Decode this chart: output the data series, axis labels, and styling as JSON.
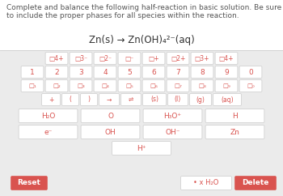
{
  "bg_color": "#ebebeb",
  "top_bg": "#ffffff",
  "title_text": "Complete and balance the following half-reaction in basic solution. Be sure\nto include the proper phases for all species within the reaction.",
  "equation": "Zn(s) → Zn(OH)₄²⁻(aq)",
  "title_fontsize": 6.5,
  "eq_fontsize": 8.5,
  "button_bg": "#ffffff",
  "button_border": "#cccccc",
  "red_text": "#d9534f",
  "red_bg": "#d9534f",
  "dark_text": "#444444",
  "superscript_row": [
    "□4+",
    "□3⁻",
    "□2⁻",
    "□⁻",
    "□+",
    "□2+",
    "□3+",
    "□4+"
  ],
  "number_row": [
    "1",
    "2",
    "3",
    "4",
    "5",
    "6",
    "7",
    "8",
    "9",
    "0"
  ],
  "subscript_row": [
    "□₁",
    "□₂",
    "□₃",
    "□₄",
    "□₅",
    "□₆",
    "□₇",
    "□₈",
    "□₉",
    "□₀"
  ],
  "symbol_row": [
    "+",
    "(",
    ")",
    "→",
    "⇌",
    "(s)",
    "(l)",
    "(g)",
    "(aq)"
  ],
  "chem_row1": [
    "H₂O",
    "O",
    "H₃O⁺",
    "H"
  ],
  "chem_row2": [
    "e⁻",
    "OH",
    "OH⁻",
    "Zn"
  ],
  "chem_row3": [
    "H⁺"
  ],
  "bottom_left": "Reset",
  "bottom_mid": "• x H₂O",
  "bottom_right": "Delete"
}
